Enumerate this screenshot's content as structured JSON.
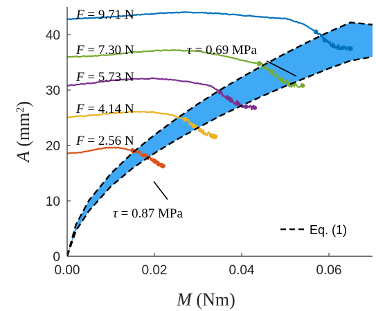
{
  "chart_data": {
    "type": "line",
    "xlabel": {
      "var": "M",
      "unit": "(Nm)"
    },
    "ylabel": {
      "var": "A",
      "unit_pre": "(mm",
      "unit_sup": "2",
      "unit_post": ")"
    },
    "xlim": [
      0,
      0.07
    ],
    "ylim": [
      0,
      45
    ],
    "xticks": [
      0,
      0.02,
      0.04,
      0.06
    ],
    "xtick_labels": [
      "0.00",
      "0.02",
      "0.04",
      "0.06"
    ],
    "yticks": [
      0,
      10,
      20,
      30,
      40
    ],
    "ytick_labels": [
      "0",
      "10",
      "20",
      "30",
      "40"
    ],
    "grid": false,
    "band": {
      "color": "#3fa9f5",
      "upper_label": "τ = 0.69 MPa",
      "lower_label": "τ = 0.87 MPa",
      "upper": {
        "x": [
          0,
          0.002,
          0.005,
          0.01,
          0.015,
          0.02,
          0.025,
          0.03,
          0.035,
          0.04,
          0.045,
          0.05,
          0.055,
          0.06,
          0.065,
          0.07
        ],
        "y": [
          0,
          5.7,
          10.1,
          14.9,
          18.7,
          21.9,
          24.8,
          27.5,
          30.0,
          32.3,
          34.5,
          36.6,
          38.6,
          40.5,
          42.2,
          41.8
        ]
      },
      "lower": {
        "x": [
          0,
          0.002,
          0.005,
          0.01,
          0.015,
          0.02,
          0.025,
          0.03,
          0.035,
          0.04,
          0.045,
          0.05,
          0.055,
          0.06,
          0.065,
          0.07
        ],
        "y": [
          0,
          4.6,
          8.2,
          12.6,
          15.9,
          18.6,
          21.0,
          23.2,
          25.3,
          27.2,
          29.0,
          30.7,
          32.3,
          33.9,
          35.3,
          36.0
        ]
      }
    },
    "series": [
      {
        "name": "F = 9.71 N",
        "label_var": "F",
        "label_val": "9.71 N",
        "color": "#0072bd",
        "x": [
          0,
          0.005,
          0.01,
          0.015,
          0.02,
          0.025,
          0.03,
          0.035,
          0.04,
          0.045,
          0.05,
          0.054,
          0.057,
          0.059,
          0.061,
          0.063,
          0.065
        ],
        "y": [
          42.8,
          43.0,
          43.2,
          43.5,
          43.8,
          44.0,
          44.0,
          43.8,
          43.5,
          43.2,
          42.9,
          42.0,
          40.5,
          39.0,
          38.0,
          37.6,
          37.5
        ]
      },
      {
        "name": "F = 7.30 N",
        "label_var": "F",
        "label_val": "7.30 N",
        "color": "#77ac30",
        "x": [
          0,
          0.005,
          0.01,
          0.015,
          0.02,
          0.025,
          0.03,
          0.035,
          0.04,
          0.044,
          0.047,
          0.049,
          0.051,
          0.054
        ],
        "y": [
          36.0,
          36.1,
          36.4,
          36.8,
          37.1,
          37.2,
          37.0,
          36.3,
          35.4,
          34.7,
          33.3,
          32.0,
          31.0,
          30.8
        ]
      },
      {
        "name": "F = 5.73 N",
        "label_var": "F",
        "label_val": "5.73 N",
        "color": "#7e2f8e",
        "x": [
          0,
          0.005,
          0.01,
          0.015,
          0.02,
          0.025,
          0.03,
          0.033,
          0.035,
          0.037,
          0.039,
          0.041,
          0.043
        ],
        "y": [
          30.8,
          31.2,
          31.7,
          32.0,
          32.1,
          31.8,
          31.2,
          30.7,
          29.7,
          28.5,
          27.6,
          27.0,
          26.8
        ]
      },
      {
        "name": "F = 4.14 N",
        "label_var": "F",
        "label_val": "4.14 N",
        "color": "#edb120",
        "x": [
          0,
          0.005,
          0.01,
          0.015,
          0.02,
          0.024,
          0.027,
          0.029,
          0.031,
          0.033,
          0.034
        ],
        "y": [
          25.1,
          25.4,
          25.8,
          26.1,
          26.0,
          25.5,
          24.7,
          23.5,
          22.5,
          21.8,
          21.6
        ]
      },
      {
        "name": "F = 2.56 N",
        "label_var": "F",
        "label_val": "2.56 N",
        "color": "#d95319",
        "x": [
          0,
          0.003,
          0.006,
          0.009,
          0.012,
          0.015,
          0.018,
          0.02,
          0.021,
          0.022
        ],
        "y": [
          18.6,
          18.7,
          19.2,
          19.6,
          19.6,
          19.1,
          18.2,
          17.2,
          16.6,
          16.3
        ]
      }
    ],
    "legend": {
      "entries": [
        "Eq. (1)"
      ],
      "placement": "bottom-right",
      "style": "dashed"
    }
  }
}
